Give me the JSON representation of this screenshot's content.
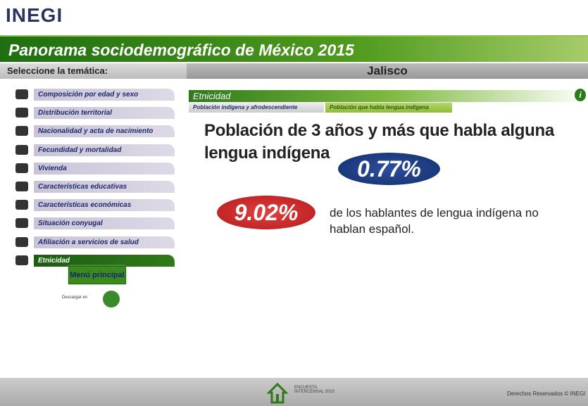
{
  "header": {
    "logo": "INEGI",
    "banner": "Panorama sociodemográfico de México 2015",
    "select_label": "Seleccione la temática:",
    "region": "Jalisco"
  },
  "menu": {
    "items": [
      "Composición por edad y sexo",
      "Distribución territorial",
      "Nacionalidad y acta de nacimiento",
      "Fecundidad y mortalidad",
      "Vivienda",
      "Características educativas",
      "Características económicas",
      "Situación conyugal",
      "Afiliación a servicios de salud",
      "Etnicidad"
    ],
    "main_button": "Menú principal",
    "download": "Descargar en"
  },
  "content": {
    "section": "Etnicidad",
    "tabs": [
      "Población indígena y afrodescendiente",
      "Población que habla lengua indígena"
    ],
    "heading": "Población de 3 años y más que habla alguna lengua indígena",
    "stat1": "0.77%",
    "stat2": "9.02%",
    "stat2_text": "de los hablantes de lengua indígena no hablan español."
  },
  "footer": {
    "logo_text": "ENCUESTA INTERCENSAL 2015",
    "rights": "Derechos Reservados © INEGI"
  }
}
